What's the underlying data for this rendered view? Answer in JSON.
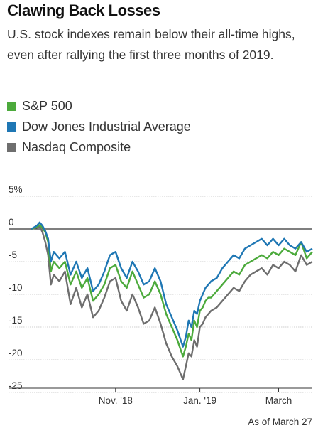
{
  "chart_data": {
    "type": "line",
    "title": "Clawing Back Losses",
    "subtitle": "U.S. stock indexes remain below their all-time highs, even after rallying the first three months of 2019.",
    "note": "As of March 27",
    "ylim": [
      -26,
      6
    ],
    "yticks": [
      5,
      0,
      -5,
      -10,
      -15,
      -20,
      -25
    ],
    "ytick_labels": [
      "5%",
      "0",
      "-5",
      "-10",
      "-15",
      "-20",
      "-25"
    ],
    "xlim": [
      0,
      100
    ],
    "xticks": [
      {
        "label": "Nov. '18",
        "x": 30
      },
      {
        "label": "Jan. '19",
        "x": 60
      },
      {
        "label": "March",
        "x": 88
      }
    ],
    "grid": true,
    "legend_position": "top-left",
    "series": [
      {
        "name": "S&P 500",
        "color": "#4caa3c",
        "x": [
          0,
          2,
          3,
          4,
          5,
          6,
          7,
          8,
          10,
          12,
          14,
          16,
          18,
          20,
          22,
          24,
          26,
          28,
          30,
          32,
          34,
          36,
          38,
          40,
          42,
          44,
          46,
          48,
          50,
          52,
          54,
          55,
          56,
          57,
          58,
          59,
          60,
          61,
          62,
          63,
          64,
          66,
          68,
          70,
          72,
          74,
          76,
          78,
          80,
          82,
          84,
          86,
          88,
          90,
          92,
          94,
          96,
          98,
          100
        ],
        "values": [
          0,
          0.3,
          0.6,
          0.2,
          -0.5,
          -2,
          -6.5,
          -5,
          -6,
          -5,
          -8.5,
          -6.5,
          -9,
          -7.5,
          -11,
          -10,
          -8.5,
          -6,
          -5.5,
          -8,
          -9,
          -6.5,
          -8.5,
          -10.5,
          -10,
          -8,
          -10,
          -13,
          -15,
          -17,
          -19.5,
          -18,
          -16,
          -17,
          -14,
          -15,
          -12.5,
          -12,
          -11,
          -10.5,
          -10.5,
          -9.5,
          -8.5,
          -7.5,
          -6.5,
          -7,
          -5.5,
          -5,
          -4.5,
          -4,
          -4.5,
          -3.5,
          -4,
          -3,
          -3.5,
          -4,
          -2,
          -4.5,
          -3.5
        ]
      },
      {
        "name": "Dow Jones Industrial Average",
        "color": "#1f77b4",
        "x": [
          0,
          2,
          3,
          4,
          5,
          6,
          7,
          8,
          10,
          12,
          14,
          16,
          18,
          20,
          22,
          24,
          26,
          28,
          30,
          32,
          34,
          36,
          38,
          40,
          42,
          44,
          46,
          48,
          50,
          52,
          54,
          55,
          56,
          57,
          58,
          59,
          60,
          61,
          62,
          63,
          64,
          66,
          68,
          70,
          72,
          74,
          76,
          78,
          80,
          82,
          84,
          86,
          88,
          90,
          92,
          94,
          96,
          98,
          100
        ],
        "values": [
          0,
          0.5,
          1,
          0.5,
          -0.3,
          -1.5,
          -5,
          -3.5,
          -4.5,
          -3.5,
          -7,
          -5,
          -7.5,
          -6,
          -9.5,
          -8.5,
          -6.5,
          -4,
          -3.5,
          -6,
          -7.5,
          -5,
          -6.5,
          -8.5,
          -8,
          -6,
          -8,
          -11.5,
          -13.5,
          -15.5,
          -18,
          -16.5,
          -14,
          -15,
          -12.5,
          -13,
          -11,
          -10,
          -9,
          -8.5,
          -8,
          -7.5,
          -6,
          -5,
          -4,
          -4.5,
          -3,
          -2.5,
          -2,
          -1.5,
          -2.5,
          -1.5,
          -2.5,
          -1.5,
          -2.5,
          -3,
          -2,
          -3.5,
          -3
        ]
      },
      {
        "name": "Nasdaq Composite",
        "color": "#6e6e6e",
        "x": [
          0,
          2,
          3,
          4,
          5,
          6,
          7,
          8,
          10,
          12,
          14,
          16,
          18,
          20,
          22,
          24,
          26,
          28,
          30,
          32,
          34,
          36,
          38,
          40,
          42,
          44,
          46,
          48,
          50,
          52,
          54,
          55,
          56,
          57,
          58,
          59,
          60,
          61,
          62,
          63,
          64,
          66,
          68,
          70,
          72,
          74,
          76,
          78,
          80,
          82,
          84,
          86,
          88,
          90,
          92,
          94,
          96,
          98,
          100
        ],
        "values": [
          0,
          0.2,
          0.4,
          -0.5,
          -2,
          -4,
          -8.5,
          -7,
          -8,
          -6.5,
          -11.5,
          -9,
          -12,
          -10,
          -13.5,
          -12.5,
          -10.5,
          -8,
          -7.5,
          -11,
          -12.5,
          -10,
          -12,
          -14.5,
          -14,
          -12,
          -14.5,
          -17.5,
          -19.5,
          -21,
          -23,
          -21,
          -19,
          -19.5,
          -17,
          -18,
          -15,
          -14.5,
          -13.5,
          -13,
          -12.5,
          -12,
          -11,
          -10,
          -9,
          -9.5,
          -8,
          -7,
          -6.5,
          -6,
          -7,
          -5.5,
          -6,
          -5,
          -5.5,
          -6.5,
          -4,
          -5.5,
          -5
        ]
      }
    ]
  }
}
